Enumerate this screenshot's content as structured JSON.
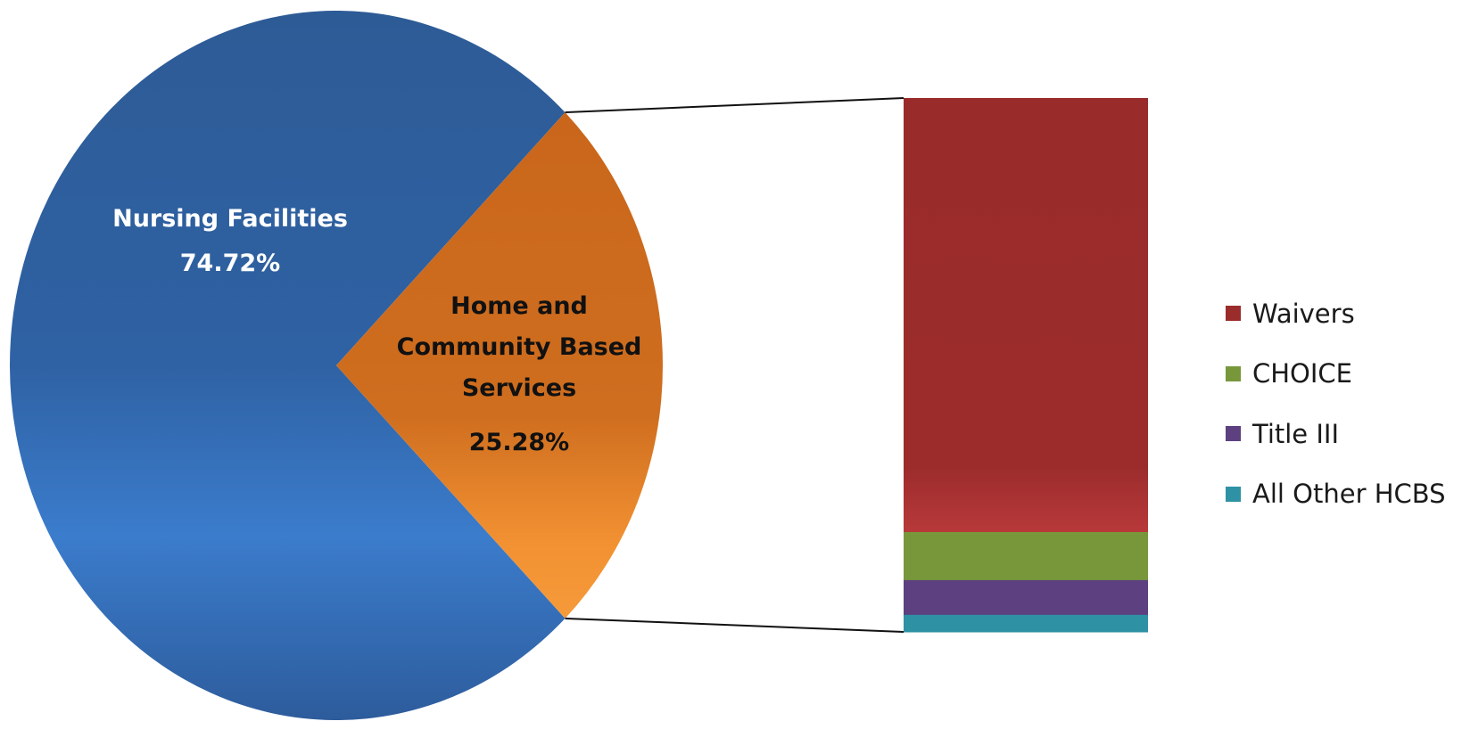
{
  "chart_data": {
    "type": "pie",
    "pie": {
      "slices": [
        {
          "name": "Nursing Facilities",
          "label": "Nursing Facilities",
          "value": 74.72,
          "value_label": "74.72%",
          "color": "#2e5f9e"
        },
        {
          "name": "Home and Community Based Services",
          "label": "Home and Community Based Services",
          "value": 25.28,
          "value_label": "25.28%",
          "color": "#cc6b1d"
        }
      ],
      "exploded_slice": "Home and Community Based Services"
    },
    "breakdown": {
      "type": "stacked-bar",
      "of": "Home and Community Based Services",
      "segments": [
        {
          "name": "Waivers",
          "value": 81.3,
          "color": "#9b2c2c"
        },
        {
          "name": "CHOICE",
          "value": 9.0,
          "color": "#77973a"
        },
        {
          "name": "Title III",
          "value": 6.5,
          "color": "#5c4080"
        },
        {
          "name": "All Other HCBS",
          "value": 3.2,
          "color": "#2f91a4"
        }
      ]
    },
    "legend": {
      "placement": "right",
      "entries": [
        "Waivers",
        "CHOICE",
        "Title III",
        "All Other HCBS"
      ]
    }
  }
}
